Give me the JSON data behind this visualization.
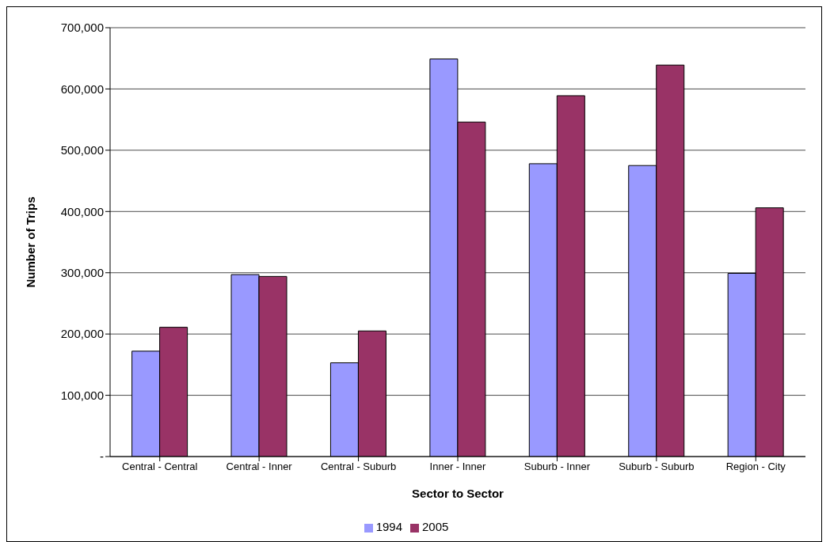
{
  "chart_data": {
    "type": "bar",
    "xlabel": "Sector to Sector",
    "ylabel": "Number of Trips",
    "categories": [
      "Central - Central",
      "Central - Inner",
      "Central - Suburb",
      "Inner - Inner",
      "Suburb - Inner",
      "Suburb - Suburb",
      "Region - City"
    ],
    "series": [
      {
        "name": "1994",
        "color": "#9999ff",
        "values": [
          172000,
          297000,
          153000,
          649000,
          478000,
          475000,
          299000
        ]
      },
      {
        "name": "2005",
        "color": "#993366",
        "values": [
          211000,
          294000,
          205000,
          546000,
          589000,
          639000,
          406000
        ]
      }
    ],
    "ylim": [
      0,
      700000
    ],
    "yticks": [
      {
        "value": 0,
        "label": "-"
      },
      {
        "value": 100000,
        "label": "100,000"
      },
      {
        "value": 200000,
        "label": "200,000"
      },
      {
        "value": 300000,
        "label": "300,000"
      },
      {
        "value": 400000,
        "label": "400,000"
      },
      {
        "value": 500000,
        "label": "500,000"
      },
      {
        "value": 600000,
        "label": "600,000"
      },
      {
        "value": 700000,
        "label": "700,000"
      }
    ],
    "grid": "y",
    "legend": "bottom"
  }
}
